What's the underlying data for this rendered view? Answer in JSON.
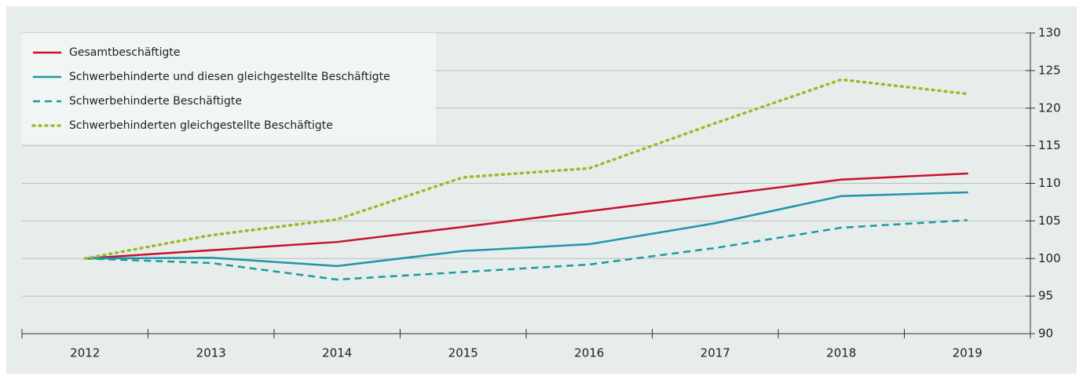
{
  "chart_data": {
    "type": "line",
    "categories": [
      "2012",
      "2013",
      "2014",
      "2015",
      "2016",
      "2017",
      "2018",
      "2019"
    ],
    "series": [
      {
        "name": "Gesamtbeschäftigte",
        "color": "#c8102e",
        "style": "solid",
        "values": [
          100,
          101.1,
          102.2,
          104.2,
          106.3,
          108.4,
          110.5,
          111.3
        ]
      },
      {
        "name": "Schwerbehinderte und diesen gleichgestellte Beschäftigte",
        "color": "#1f95a9",
        "style": "solid",
        "values": [
          100,
          100.1,
          99.0,
          101.0,
          101.9,
          104.7,
          108.3,
          108.8
        ]
      },
      {
        "name": "Schwerbehinderte Beschäftigte",
        "color": "#1a9ba0",
        "style": "dashed",
        "values": [
          100,
          99.4,
          97.2,
          98.2,
          99.2,
          101.4,
          104.1,
          105.1
        ]
      },
      {
        "name": "Schwerbehinderten gleichgestellte Beschäftigte",
        "color": "#9cbb2a",
        "style": "dotted",
        "values": [
          100,
          103.1,
          105.2,
          110.8,
          112.0,
          118.0,
          123.8,
          121.9
        ]
      }
    ],
    "ylim": [
      90,
      130
    ],
    "yticks": [
      90,
      95,
      100,
      105,
      110,
      115,
      120,
      125,
      130
    ],
    "grid": true,
    "legend": "upper left",
    "y_axis_side": "right"
  }
}
